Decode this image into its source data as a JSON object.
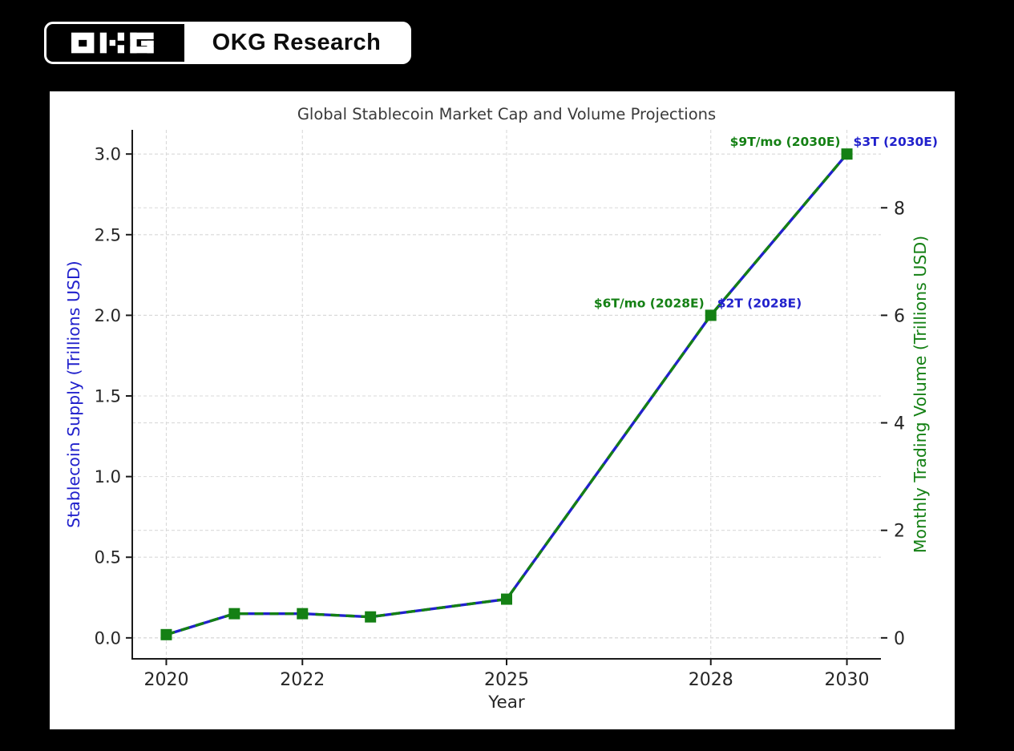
{
  "page": {
    "background": "#000000",
    "card_background": "#ffffff"
  },
  "brand": {
    "logo_glyph": "OKG",
    "name": "OKG Research"
  },
  "colors": {
    "blue": "#2121cc",
    "green": "#148014",
    "grid": "#d9d9d9",
    "axis": "#1a1a1a",
    "tick_text": "#262626",
    "title_text": "#3a3a3a"
  },
  "chart_data": {
    "type": "line",
    "title": "Global Stablecoin Market Cap and Volume Projections",
    "xlabel": "Year",
    "ylabel_left": "Stablecoin Supply (Trillions USD)",
    "ylabel_right": "Monthly Trading Volume (Trillions USD)",
    "x": [
      2020,
      2021,
      2022,
      2023,
      2025,
      2028,
      2030
    ],
    "series": [
      {
        "name": "Stablecoin Supply",
        "axis": "left",
        "color_key": "blue",
        "line_style": "solid",
        "marker": "none",
        "values": [
          0.02,
          0.15,
          0.15,
          0.13,
          0.24,
          2.0,
          3.0
        ]
      },
      {
        "name": "Monthly Trading Volume",
        "axis": "right",
        "color_key": "green",
        "line_style": "dashed",
        "marker": "square",
        "values": [
          0.06,
          0.45,
          0.45,
          0.39,
          0.72,
          6.0,
          9.0
        ]
      }
    ],
    "xticks": [
      "2020",
      "2022",
      "2025",
      "2028",
      "2030"
    ],
    "yticks_left": [
      "0.0",
      "0.5",
      "1.0",
      "1.5",
      "2.0",
      "2.5",
      "3.0"
    ],
    "yticks_right": [
      "0",
      "2",
      "4",
      "6",
      "8"
    ],
    "xlim": [
      2019.5,
      2030.5
    ],
    "ylim_left": [
      -0.13,
      3.15
    ],
    "ylim_right": [
      -0.39,
      9.45
    ],
    "grid": true,
    "grid_style": "dashed",
    "legend": "none",
    "annotations": [
      {
        "text": "$6T/mo (2028E)",
        "color_key": "green",
        "x": 2028,
        "y_left": 2.0,
        "side": "left"
      },
      {
        "text": "$2T (2028E)",
        "color_key": "blue",
        "x": 2028,
        "y_left": 2.0,
        "side": "right"
      },
      {
        "text": "$9T/mo (2030E)",
        "color_key": "green",
        "x": 2030,
        "y_left": 3.0,
        "side": "left"
      },
      {
        "text": "$3T (2030E)",
        "color_key": "blue",
        "x": 2030,
        "y_left": 3.0,
        "side": "right"
      }
    ]
  }
}
